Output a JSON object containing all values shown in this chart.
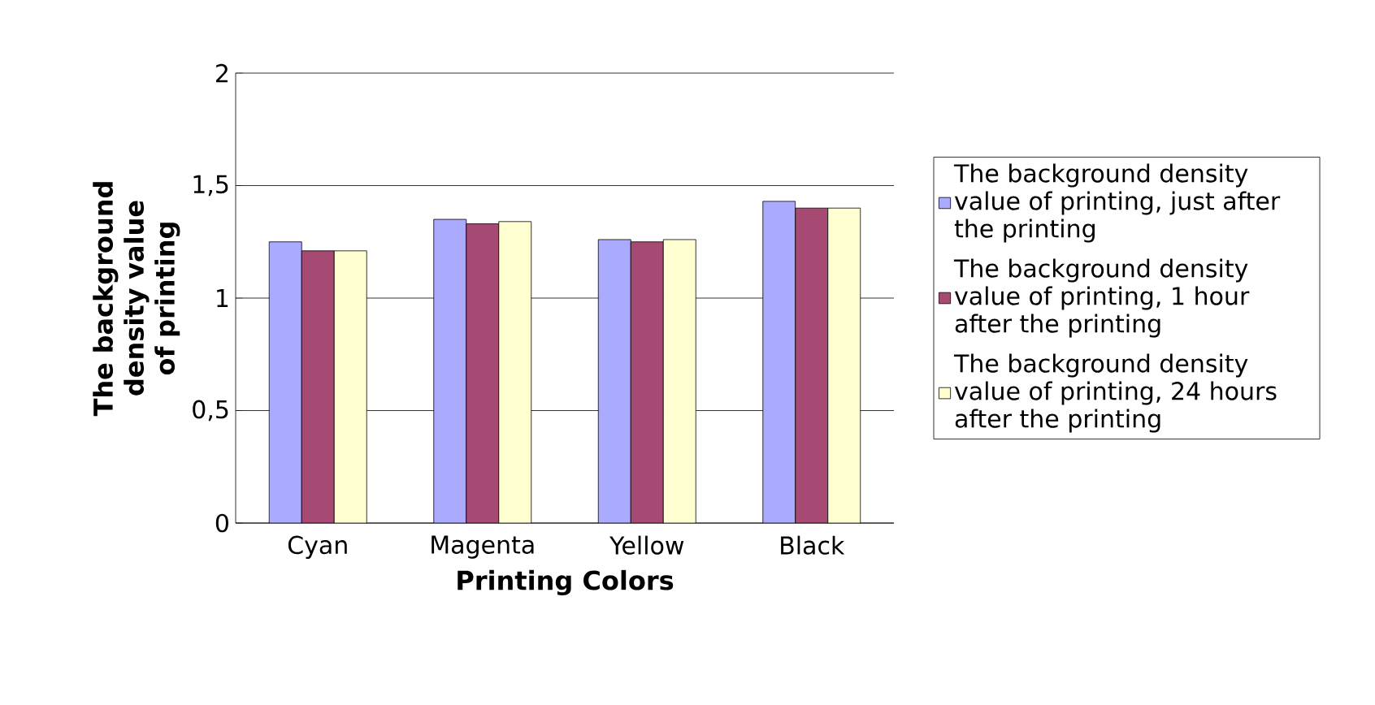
{
  "chart_data": {
    "type": "bar",
    "xlabel": "Printing Colors",
    "ylabel": "The background density value of printing",
    "categories": [
      "Cyan",
      "Magenta",
      "Yellow",
      "Black"
    ],
    "series": [
      {
        "name": "The background density value of printing, just after the printing",
        "color": "#aaaaff",
        "values": [
          1.25,
          1.35,
          1.26,
          1.43
        ]
      },
      {
        "name": "The background density value of printing, 1 hour after the printing",
        "color": "#a64a74",
        "values": [
          1.21,
          1.33,
          1.25,
          1.4
        ]
      },
      {
        "name": "The background density value of printing, 24 hours after the printing",
        "color": "#ffffd2",
        "values": [
          1.21,
          1.34,
          1.26,
          1.4
        ]
      }
    ],
    "ylim": [
      0,
      2
    ],
    "yticks": [
      0,
      {
        "value": 0.5,
        "label": "0,5"
      },
      1,
      {
        "value": 1.5,
        "label": "1,5"
      },
      2
    ],
    "grid": "y",
    "legend": "right"
  }
}
